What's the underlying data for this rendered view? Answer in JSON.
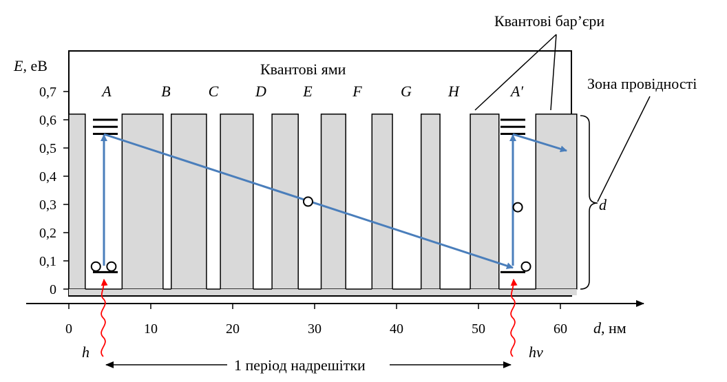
{
  "labels": {
    "quantum_barriers": "Квантові бар’єри",
    "quantum_wells": "Квантові ями",
    "conduction_band": "Зона провідності",
    "superlattice_period": "1 період надрешітки",
    "y_axis_symbol": "E",
    "y_axis_unit": ", eB",
    "x_axis_symbol": "d",
    "x_axis_unit": ", нм",
    "bracket_symbol": "d",
    "photon_left": "h",
    "photon_right": "hv"
  },
  "wells": [
    {
      "name": "A",
      "left_nm": 2.0,
      "right_nm": 6.5
    },
    {
      "name": "B",
      "left_nm": 11.5,
      "right_nm": 12.5
    },
    {
      "name": "C",
      "left_nm": 16.8,
      "right_nm": 18.5
    },
    {
      "name": "D",
      "left_nm": 22.5,
      "right_nm": 24.8
    },
    {
      "name": "E",
      "left_nm": 28.0,
      "right_nm": 30.8
    },
    {
      "name": "F",
      "left_nm": 33.8,
      "right_nm": 37.0
    },
    {
      "name": "G",
      "left_nm": 39.5,
      "right_nm": 43.0
    },
    {
      "name": "H",
      "left_nm": 45.3,
      "right_nm": 49.0
    },
    {
      "name": "A′",
      "left_nm": 52.5,
      "right_nm": 57.0
    }
  ],
  "barrier_top_eV": 0.62,
  "x_axis": {
    "ticks": [
      0,
      10,
      20,
      30,
      40,
      50,
      60
    ],
    "tick_labels": [
      "0",
      "10",
      "20",
      "30",
      "40",
      "50",
      "60"
    ]
  },
  "y_axis": {
    "ticks": [
      0,
      0.1,
      0.2,
      0.3,
      0.4,
      0.5,
      0.6,
      0.7
    ],
    "tick_labels": [
      "0",
      "0,1",
      "0,2",
      "0,3",
      "0,4",
      "0,5",
      "0,6",
      "0,7"
    ]
  },
  "energy_levels": [
    {
      "well": "A",
      "type": "ground",
      "E_eV": 0.06
    },
    {
      "well": "A",
      "type": "excited",
      "E_eV": [
        0.55,
        0.575,
        0.6
      ]
    },
    {
      "well": "A′",
      "type": "ground",
      "E_eV": 0.06
    },
    {
      "well": "A′",
      "type": "excited",
      "E_eV": [
        0.55,
        0.575,
        0.6
      ]
    }
  ],
  "carriers": [
    {
      "x_nm": 3.3,
      "E_eV": 0.08
    },
    {
      "x_nm": 5.2,
      "E_eV": 0.08
    },
    {
      "x_nm": 29.2,
      "E_eV": 0.31
    },
    {
      "x_nm": 54.8,
      "E_eV": 0.29
    },
    {
      "x_nm": 55.8,
      "E_eV": 0.08
    }
  ],
  "colors": {
    "barrier_fill": "#d9d9d9",
    "arrow": "#4a7ebb",
    "photon": "#ff0000",
    "outline": "#000000"
  }
}
